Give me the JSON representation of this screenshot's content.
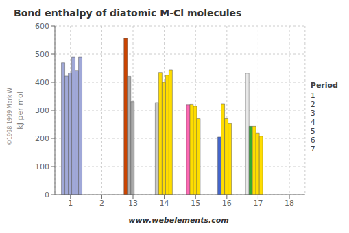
{
  "chart_data": {
    "type": "bar",
    "title": "Bond enthalpy of diatomic M-Cl molecules",
    "y_label": "kJ per mol",
    "legend_title": "Period",
    "categories": [
      "1",
      "2",
      "13",
      "14",
      "15",
      "16",
      "17",
      "18"
    ],
    "series": [
      {
        "name": "1",
        "values": [
          0,
          0,
          0,
          0,
          0,
          0,
          432,
          0
        ],
        "colors": [
          null,
          null,
          null,
          null,
          null,
          null,
          "#e8e8e8",
          null
        ]
      },
      {
        "name": "2",
        "values": [
          469,
          0,
          556,
          327,
          320,
          205,
          243,
          0
        ],
        "colors": [
          "#a0a8d8",
          null,
          "#cc4400",
          "#c8c8c8",
          "#ff69b4",
          "#4466cc",
          "#33aa33",
          null
        ]
      },
      {
        "name": "3",
        "values": [
          422,
          0,
          421,
          435,
          321,
          322,
          243,
          0
        ],
        "colors": [
          "#a0a8d8",
          null,
          "#aaaaaa",
          "#ffdd00",
          "#ffdd00",
          "#ffdd00",
          "#ffdd00",
          null
        ]
      },
      {
        "name": "4",
        "values": [
          433,
          0,
          330,
          400,
          315,
          272,
          219,
          0
        ],
        "colors": [
          "#a0a8d8",
          null,
          "#aaaaaa",
          "#ffdd00",
          "#ffdd00",
          "#ffdd00",
          "#ffdd00",
          null
        ]
      },
      {
        "name": "5",
        "values": [
          490,
          0,
          0,
          425,
          272,
          253,
          208,
          0
        ],
        "colors": [
          "#a0a8d8",
          null,
          null,
          "#ffdd00",
          "#ffdd00",
          "#ffdd00",
          "#ffdd00",
          null
        ]
      },
      {
        "name": "6",
        "values": [
          442,
          0,
          0,
          444,
          0,
          0,
          0,
          0
        ],
        "colors": [
          "#a0a8d8",
          null,
          null,
          "#ffdd00",
          null,
          null,
          null,
          null
        ]
      },
      {
        "name": "7",
        "values": [
          490,
          0,
          0,
          0,
          0,
          0,
          0,
          0
        ],
        "colors": [
          "#a0a8d8",
          null,
          null,
          null,
          null,
          null,
          null,
          null
        ]
      }
    ],
    "ylim": [
      0,
      600
    ],
    "yticks": [
      0,
      100,
      200,
      300,
      400,
      500,
      600
    ],
    "grid": true,
    "legend": "right",
    "annotations": [
      "www.webelements.com",
      "©1998,1999 Mark W"
    ]
  }
}
